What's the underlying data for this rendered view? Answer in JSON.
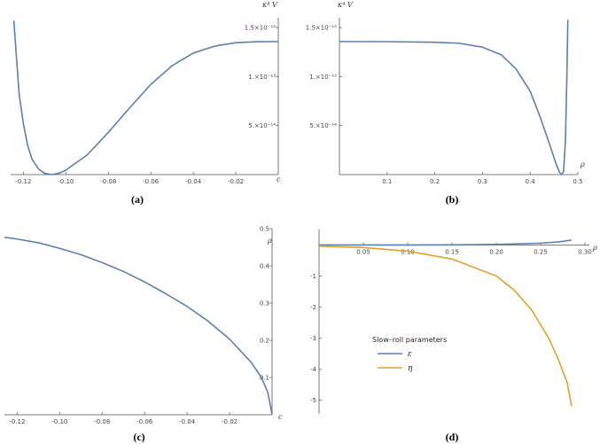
{
  "colors": {
    "blue": "#5b7fb0",
    "orange": "#e0a12d",
    "axis": "#555555"
  },
  "chart_data": [
    {
      "id": "a",
      "type": "line",
      "panel_label": "(a)",
      "xlabel": "c",
      "ylabel": "κ⁴ V",
      "xlim": [
        -0.126,
        0.0
      ],
      "ylim": [
        0,
        1.6e-13
      ],
      "x_ticks": [
        {
          "v": -0.12,
          "label": "-0.12"
        },
        {
          "v": -0.1,
          "label": "-0.10"
        },
        {
          "v": -0.08,
          "label": "-0.08"
        },
        {
          "v": -0.06,
          "label": "-0.06"
        },
        {
          "v": -0.04,
          "label": "-0.04"
        },
        {
          "v": -0.02,
          "label": "-0.02"
        }
      ],
      "y_ticks": [
        {
          "v": 5e-14,
          "label": "5.×10⁻¹⁴"
        },
        {
          "v": 1e-13,
          "label": "1.×10⁻¹³"
        },
        {
          "v": 1.5e-13,
          "label": "1.5×10⁻¹³"
        }
      ],
      "series": [
        {
          "color": "blue",
          "points": [
            [
              -0.1245,
              1.57e-13
            ],
            [
              -0.122,
              8.2e-14
            ],
            [
              -0.12,
              5.2e-14
            ],
            [
              -0.118,
              3e-14
            ],
            [
              -0.116,
              1.6e-14
            ],
            [
              -0.113,
              6e-15
            ],
            [
              -0.11,
              1.2e-15
            ],
            [
              -0.1065,
              0
            ],
            [
              -0.103,
              1.5e-15
            ],
            [
              -0.1,
              4.5e-15
            ],
            [
              -0.09,
              2e-14
            ],
            [
              -0.08,
              4.3e-14
            ],
            [
              -0.07,
              6.8e-14
            ],
            [
              -0.06,
              9.2e-14
            ],
            [
              -0.05,
              1.11e-13
            ],
            [
              -0.04,
              1.24e-13
            ],
            [
              -0.03,
              1.31e-13
            ],
            [
              -0.02,
              1.345e-13
            ],
            [
              -0.01,
              1.355e-13
            ],
            [
              0.0,
              1.357e-13
            ]
          ]
        }
      ]
    },
    {
      "id": "b",
      "type": "line",
      "panel_label": "(b)",
      "xlabel": "ρ",
      "ylabel": "κ⁴ V",
      "xlim": [
        0.0,
        0.5
      ],
      "ylim": [
        0,
        1.6e-13
      ],
      "x_ticks": [
        {
          "v": 0.1,
          "label": "0.1"
        },
        {
          "v": 0.2,
          "label": "0.2"
        },
        {
          "v": 0.3,
          "label": "0.3"
        },
        {
          "v": 0.4,
          "label": "0.4"
        },
        {
          "v": 0.5,
          "label": "0.5"
        }
      ],
      "y_ticks": [
        {
          "v": 5e-14,
          "label": "5.×10⁻¹⁴"
        },
        {
          "v": 1e-13,
          "label": "1.×10⁻¹³"
        },
        {
          "v": 1.5e-13,
          "label": "1.5×10⁻¹³"
        }
      ],
      "series": [
        {
          "color": "blue",
          "points": [
            [
              0.0,
              1.357e-13
            ],
            [
              0.1,
              1.356e-13
            ],
            [
              0.2,
              1.35e-13
            ],
            [
              0.25,
              1.34e-13
            ],
            [
              0.3,
              1.3e-13
            ],
            [
              0.34,
              1.22e-13
            ],
            [
              0.37,
              1.08e-13
            ],
            [
              0.4,
              8.5e-14
            ],
            [
              0.42,
              6e-14
            ],
            [
              0.44,
              3.2e-14
            ],
            [
              0.455,
              1e-14
            ],
            [
              0.462,
              2e-15
            ],
            [
              0.466,
              0
            ],
            [
              0.47,
              3e-15
            ],
            [
              0.474,
              3.5e-14
            ],
            [
              0.477,
              1e-13
            ],
            [
              0.479,
              1.58e-13
            ]
          ]
        }
      ]
    },
    {
      "id": "c",
      "type": "line",
      "panel_label": "(c)",
      "xlabel": "c",
      "ylabel": "ρ",
      "xlim": [
        -0.126,
        0.0
      ],
      "ylim": [
        0,
        0.5
      ],
      "x_ticks": [
        {
          "v": -0.12,
          "label": "-0.12"
        },
        {
          "v": -0.1,
          "label": "-0.10"
        },
        {
          "v": -0.08,
          "label": "-0.08"
        },
        {
          "v": -0.06,
          "label": "-0.06"
        },
        {
          "v": -0.04,
          "label": "-0.04"
        },
        {
          "v": -0.02,
          "label": "-0.02"
        }
      ],
      "y_ticks": [
        {
          "v": 0.1,
          "label": "0.1"
        },
        {
          "v": 0.2,
          "label": "0.2"
        },
        {
          "v": 0.3,
          "label": "0.3"
        },
        {
          "v": 0.4,
          "label": "0.4"
        },
        {
          "v": 0.5,
          "label": "0.5"
        }
      ],
      "series": [
        {
          "color": "blue",
          "points": [
            [
              -0.126,
              0.477
            ],
            [
              -0.12,
              0.472
            ],
            [
              -0.11,
              0.462
            ],
            [
              -0.1,
              0.447
            ],
            [
              -0.09,
              0.43
            ],
            [
              -0.08,
              0.409
            ],
            [
              -0.07,
              0.385
            ],
            [
              -0.06,
              0.357
            ],
            [
              -0.05,
              0.325
            ],
            [
              -0.04,
              0.291
            ],
            [
              -0.03,
              0.251
            ],
            [
              -0.02,
              0.203
            ],
            [
              -0.01,
              0.142
            ],
            [
              -0.005,
              0.1
            ],
            [
              -0.002,
              0.06
            ],
            [
              0.0,
              0.0
            ]
          ]
        }
      ]
    },
    {
      "id": "d",
      "type": "line",
      "panel_label": "(d)",
      "xlabel": "ρ",
      "ylabel": "",
      "xlim": [
        0.0,
        0.305
      ],
      "ylim": [
        -5.45,
        0.5
      ],
      "x_ticks": [
        {
          "v": 0.05,
          "label": "0.05"
        },
        {
          "v": 0.1,
          "label": "0.10"
        },
        {
          "v": 0.15,
          "label": "0.15"
        },
        {
          "v": 0.2,
          "label": "0.20"
        },
        {
          "v": 0.25,
          "label": "0.25"
        },
        {
          "v": 0.3,
          "label": "0.30"
        }
      ],
      "y_ticks": [
        {
          "v": -1,
          "label": "-1"
        },
        {
          "v": -2,
          "label": "-2"
        },
        {
          "v": -3,
          "label": "-3"
        },
        {
          "v": -4,
          "label": "-4"
        },
        {
          "v": -5,
          "label": "-5"
        }
      ],
      "legend": {
        "title": "Slow–roll parameters",
        "placement": "lower-left"
      },
      "series": [
        {
          "name": "ε",
          "color": "blue",
          "points": [
            [
              0.0,
              0.0
            ],
            [
              0.1,
              0.0
            ],
            [
              0.15,
              0.005
            ],
            [
              0.2,
              0.02
            ],
            [
              0.25,
              0.06
            ],
            [
              0.27,
              0.1
            ],
            [
              0.285,
              0.16
            ]
          ]
        },
        {
          "name": "η",
          "color": "orange",
          "points": [
            [
              0.0,
              -0.04
            ],
            [
              0.05,
              -0.08
            ],
            [
              0.1,
              -0.2
            ],
            [
              0.15,
              -0.45
            ],
            [
              0.2,
              -1.0
            ],
            [
              0.22,
              -1.45
            ],
            [
              0.24,
              -2.1
            ],
            [
              0.26,
              -3.05
            ],
            [
              0.27,
              -3.7
            ],
            [
              0.28,
              -4.45
            ],
            [
              0.285,
              -5.2
            ]
          ]
        }
      ]
    }
  ]
}
